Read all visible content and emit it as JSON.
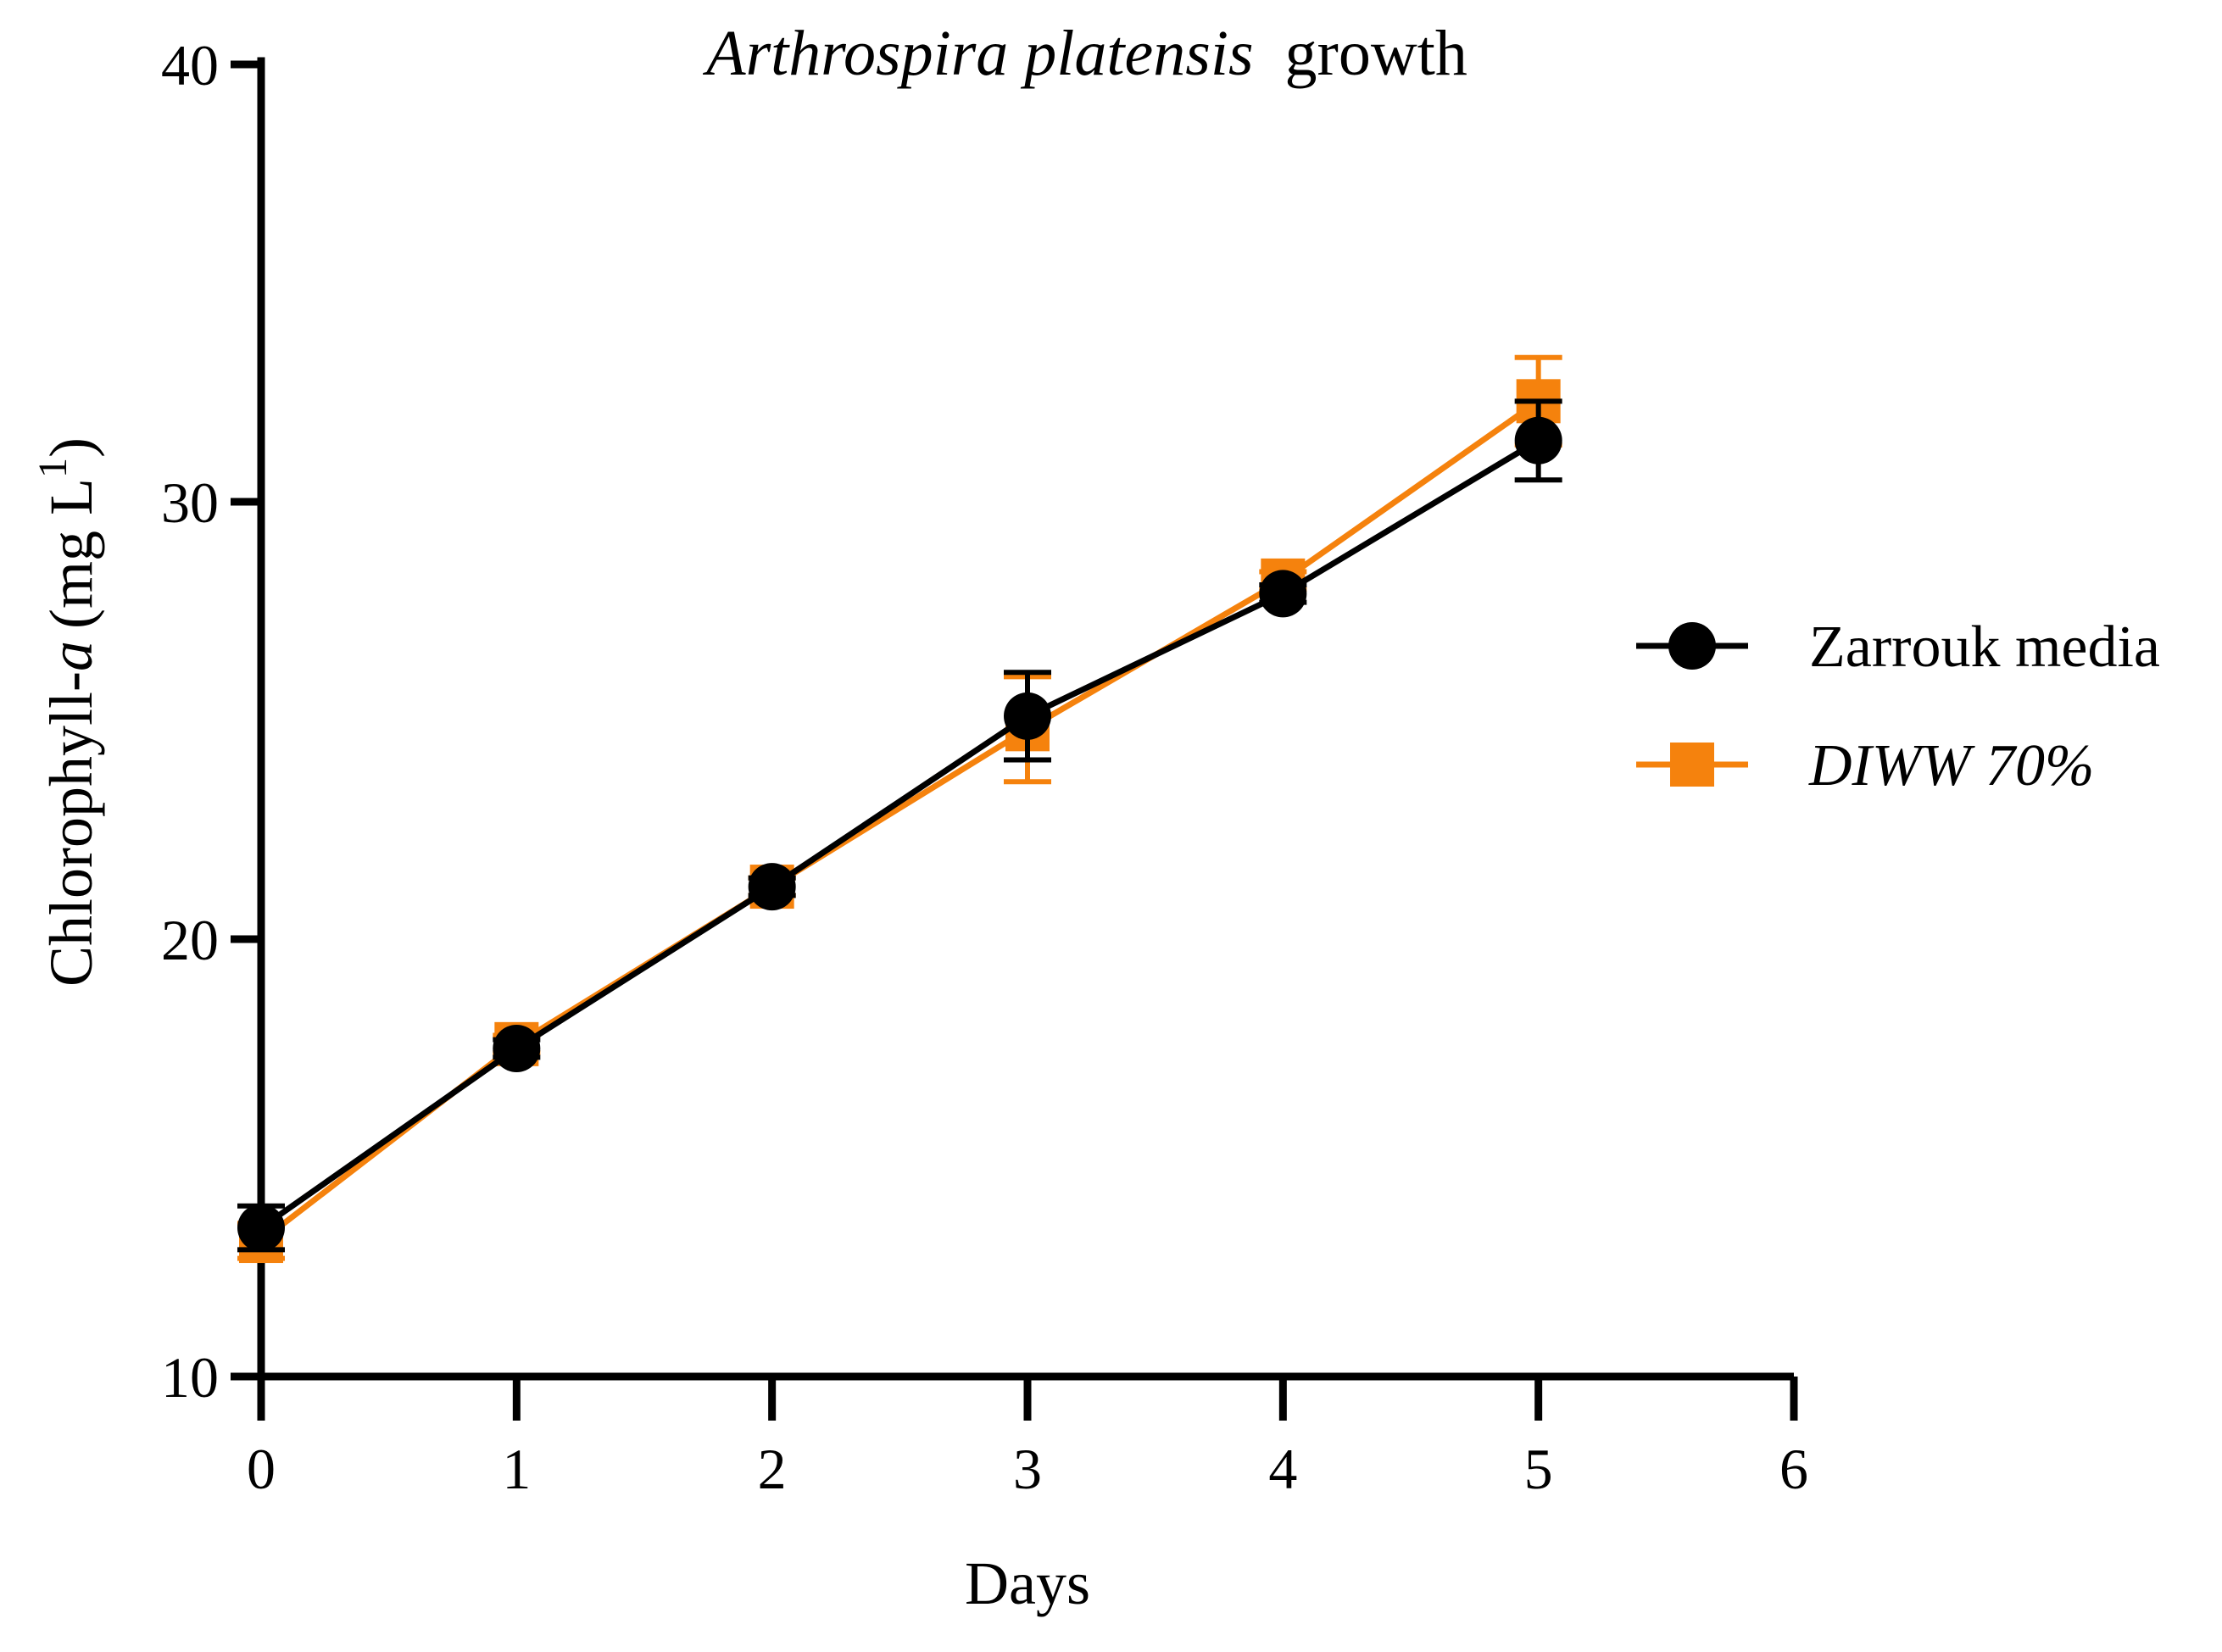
{
  "chart_data": {
    "type": "line",
    "title_italic": "Arthrospira platensis",
    "title_rest": "growth",
    "xlabel": "Days",
    "ylabel_prefix": "Chlorophyll-",
    "ylabel_italic": "a",
    "ylabel_unit": "(mg  L",
    "ylabel_sup": "1",
    "ylabel_close": ")",
    "xlim": [
      0,
      6
    ],
    "ylim": [
      10,
      40
    ],
    "x_ticks": [
      {
        "value": 0,
        "label": "0"
      },
      {
        "value": 1,
        "label": "1"
      },
      {
        "value": 2,
        "label": "2"
      },
      {
        "value": 3,
        "label": "3"
      },
      {
        "value": 4,
        "label": "4"
      },
      {
        "value": 5,
        "label": "5"
      },
      {
        "value": 6,
        "label": "6"
      }
    ],
    "y_ticks": [
      {
        "value": 10,
        "label": "10"
      },
      {
        "value": 20,
        "label": "20"
      },
      {
        "value": 30,
        "label": "30"
      },
      {
        "value": 40,
        "label": "40"
      }
    ],
    "legend_position": "right",
    "series": [
      {
        "name": "DIWW 70%",
        "color": "#F5820D",
        "marker": "square",
        "italic": true,
        "x": [
          0,
          1,
          2,
          3,
          4,
          5
        ],
        "y": [
          13.1,
          17.6,
          21.2,
          24.8,
          28.2,
          32.3
        ],
        "error": [
          0.4,
          0.2,
          0.2,
          1.2,
          0.2,
          1.0
        ]
      },
      {
        "name": "Zarrouk media",
        "color": "#000000",
        "marker": "circle",
        "italic": false,
        "x": [
          0,
          1,
          2,
          3,
          4,
          5
        ],
        "y": [
          13.4,
          17.5,
          21.2,
          25.1,
          27.9,
          31.4
        ],
        "error": [
          0.5,
          0.2,
          0.2,
          1.0,
          0.2,
          0.9
        ]
      }
    ]
  }
}
